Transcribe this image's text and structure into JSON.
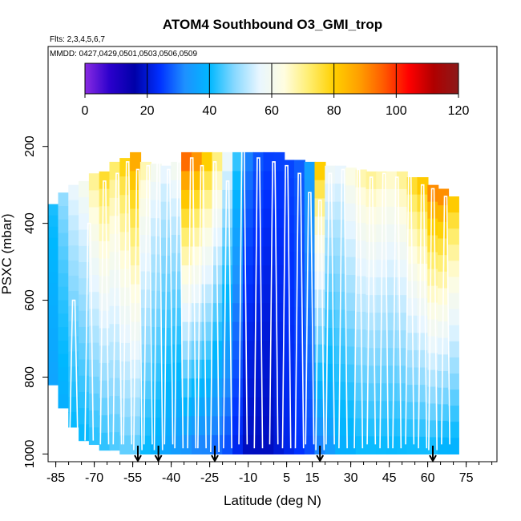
{
  "chart_data": {
    "type": "heatmap",
    "title": "ATOM4 Southbound O3_GMI_trop",
    "flights_label": "Flts: 2,3,4,5,6,7",
    "dates_label": "MMDD: 0427,0429,0501,0503,0506,0509",
    "xlabel": "Latitude (deg N)",
    "ylabel": "PSXC (mbar)",
    "xlim": [
      -88,
      87
    ],
    "ylim": [
      1020,
      -60
    ],
    "x_ticks": [
      -85,
      -70,
      -55,
      -40,
      -25,
      -10,
      5,
      15,
      30,
      45,
      60,
      75
    ],
    "y_ticks": [
      200,
      400,
      600,
      800,
      1000
    ],
    "colorbar": {
      "ticks": [
        0,
        20,
        40,
        60,
        80,
        100,
        120
      ],
      "range": [
        0,
        120
      ],
      "colors": [
        "#8a2be2",
        "#2b00cc",
        "#0000a8",
        "#0030ff",
        "#1e90ff",
        "#00b8ff",
        "#87d8ff",
        "#e8f6ff",
        "#fffde0",
        "#ffee70",
        "#ffd000",
        "#ffa000",
        "#ff5a00",
        "#ff0000",
        "#b00000",
        "#8b1a1a"
      ]
    },
    "profile_arrows_lat": [
      -53,
      -45,
      -23,
      18,
      62
    ],
    "profiles": [
      {
        "lat": -78,
        "p_top": 600,
        "p_bottom": 975
      },
      {
        "lat": -72,
        "p_top": 400,
        "p_bottom": 965
      },
      {
        "lat": -66,
        "p_top": 290,
        "p_bottom": 975
      },
      {
        "lat": -61,
        "p_top": 270,
        "p_bottom": 975
      },
      {
        "lat": -57,
        "p_top": 240,
        "p_bottom": 975
      },
      {
        "lat": -53,
        "p_top": 260,
        "p_bottom": 990
      },
      {
        "lat": -49,
        "p_top": 250,
        "p_bottom": 975
      },
      {
        "lat": -45,
        "p_top": 230,
        "p_bottom": 990
      },
      {
        "lat": -41,
        "p_top": 260,
        "p_bottom": 975
      },
      {
        "lat": -37,
        "p_top": 240,
        "p_bottom": 985
      },
      {
        "lat": -32,
        "p_top": 230,
        "p_bottom": 985
      },
      {
        "lat": -28,
        "p_top": 250,
        "p_bottom": 985
      },
      {
        "lat": -23,
        "p_top": 240,
        "p_bottom": 995
      },
      {
        "lat": -18,
        "p_top": 290,
        "p_bottom": 985
      },
      {
        "lat": -12,
        "p_top": 205,
        "p_bottom": 975
      },
      {
        "lat": -6,
        "p_top": 230,
        "p_bottom": 985
      },
      {
        "lat": 0,
        "p_top": 240,
        "p_bottom": 975
      },
      {
        "lat": 5,
        "p_top": 250,
        "p_bottom": 985
      },
      {
        "lat": 10,
        "p_top": 270,
        "p_bottom": 985
      },
      {
        "lat": 14,
        "p_top": 320,
        "p_bottom": 975
      },
      {
        "lat": 18,
        "p_top": 340,
        "p_bottom": 990
      },
      {
        "lat": 22,
        "p_top": 270,
        "p_bottom": 975
      },
      {
        "lat": 27,
        "p_top": 260,
        "p_bottom": 985
      },
      {
        "lat": 33,
        "p_top": 260,
        "p_bottom": 985
      },
      {
        "lat": 38,
        "p_top": 280,
        "p_bottom": 975
      },
      {
        "lat": 43,
        "p_top": 270,
        "p_bottom": 985
      },
      {
        "lat": 48,
        "p_top": 280,
        "p_bottom": 985
      },
      {
        "lat": 53,
        "p_top": 270,
        "p_bottom": 975
      },
      {
        "lat": 58,
        "p_top": 300,
        "p_bottom": 985
      },
      {
        "lat": 62,
        "p_top": 310,
        "p_bottom": 990
      },
      {
        "lat": 67,
        "p_top": 330,
        "p_bottom": 975
      }
    ],
    "columns": [
      {
        "lat": -86,
        "p_top": 350,
        "p_bottom": 820,
        "o3_top": 42,
        "o3_bottom": 36
      },
      {
        "lat": -82,
        "p_top": 320,
        "p_bottom": 880,
        "o3_top": 50,
        "o3_bottom": 38
      },
      {
        "lat": -78,
        "p_top": 300,
        "p_bottom": 930,
        "o3_top": 58,
        "o3_bottom": 40
      },
      {
        "lat": -74,
        "p_top": 290,
        "p_bottom": 965,
        "o3_top": 62,
        "o3_bottom": 40
      },
      {
        "lat": -70,
        "p_top": 270,
        "p_bottom": 975,
        "o3_top": 72,
        "o3_bottom": 42
      },
      {
        "lat": -66,
        "p_top": 265,
        "p_bottom": 990,
        "o3_top": 80,
        "o3_bottom": 42
      },
      {
        "lat": -62,
        "p_top": 240,
        "p_bottom": 990,
        "o3_top": 75,
        "o3_bottom": 44
      },
      {
        "lat": -58,
        "p_top": 230,
        "p_bottom": 1000,
        "o3_top": 82,
        "o3_bottom": 45
      },
      {
        "lat": -54,
        "p_top": 215,
        "p_bottom": 1000,
        "o3_top": 90,
        "o3_bottom": 45
      },
      {
        "lat": -50,
        "p_top": 240,
        "p_bottom": 1000,
        "o3_top": 70,
        "o3_bottom": 40
      },
      {
        "lat": -46,
        "p_top": 245,
        "p_bottom": 1000,
        "o3_top": 62,
        "o3_bottom": 38
      },
      {
        "lat": -42,
        "p_top": 250,
        "p_bottom": 1000,
        "o3_top": 58,
        "o3_bottom": 36
      },
      {
        "lat": -38,
        "p_top": 240,
        "p_bottom": 1000,
        "o3_top": 62,
        "o3_bottom": 34
      },
      {
        "lat": -34,
        "p_top": 215,
        "p_bottom": 1000,
        "o3_top": 100,
        "o3_bottom": 32
      },
      {
        "lat": -30,
        "p_top": 215,
        "p_bottom": 1000,
        "o3_top": 95,
        "o3_bottom": 30
      },
      {
        "lat": -26,
        "p_top": 215,
        "p_bottom": 1000,
        "o3_top": 85,
        "o3_bottom": 30
      },
      {
        "lat": -22,
        "p_top": 215,
        "p_bottom": 1000,
        "o3_top": 75,
        "o3_bottom": 28
      },
      {
        "lat": -18,
        "p_top": 215,
        "p_bottom": 1000,
        "o3_top": 60,
        "o3_bottom": 26
      },
      {
        "lat": -14,
        "p_top": 215,
        "p_bottom": 1000,
        "o3_top": 45,
        "o3_bottom": 22
      },
      {
        "lat": -10,
        "p_top": 215,
        "p_bottom": 1000,
        "o3_top": 32,
        "o3_bottom": 18
      },
      {
        "lat": -6,
        "p_top": 215,
        "p_bottom": 1000,
        "o3_top": 28,
        "o3_bottom": 18
      },
      {
        "lat": -2,
        "p_top": 215,
        "p_bottom": 1000,
        "o3_top": 26,
        "o3_bottom": 18
      },
      {
        "lat": 2,
        "p_top": 215,
        "p_bottom": 1000,
        "o3_top": 26,
        "o3_bottom": 20
      },
      {
        "lat": 6,
        "p_top": 235,
        "p_bottom": 1000,
        "o3_top": 26,
        "o3_bottom": 22
      },
      {
        "lat": 10,
        "p_top": 235,
        "p_bottom": 1000,
        "o3_top": 28,
        "o3_bottom": 24
      },
      {
        "lat": 14,
        "p_top": 240,
        "p_bottom": 1000,
        "o3_top": 36,
        "o3_bottom": 26
      },
      {
        "lat": 18,
        "p_top": 240,
        "p_bottom": 1000,
        "o3_top": 85,
        "o3_bottom": 30
      },
      {
        "lat": 22,
        "p_top": 250,
        "p_bottom": 1000,
        "o3_top": 60,
        "o3_bottom": 34
      },
      {
        "lat": 26,
        "p_top": 250,
        "p_bottom": 1000,
        "o3_top": 58,
        "o3_bottom": 38
      },
      {
        "lat": 30,
        "p_top": 255,
        "p_bottom": 1000,
        "o3_top": 65,
        "o3_bottom": 38
      },
      {
        "lat": 34,
        "p_top": 260,
        "p_bottom": 1000,
        "o3_top": 70,
        "o3_bottom": 40
      },
      {
        "lat": 38,
        "p_top": 265,
        "p_bottom": 1000,
        "o3_top": 72,
        "o3_bottom": 40
      },
      {
        "lat": 42,
        "p_top": 265,
        "p_bottom": 1000,
        "o3_top": 70,
        "o3_bottom": 40
      },
      {
        "lat": 46,
        "p_top": 265,
        "p_bottom": 1000,
        "o3_top": 68,
        "o3_bottom": 40
      },
      {
        "lat": 50,
        "p_top": 265,
        "p_bottom": 1000,
        "o3_top": 72,
        "o3_bottom": 40
      },
      {
        "lat": 54,
        "p_top": 280,
        "p_bottom": 1000,
        "o3_top": 80,
        "o3_bottom": 40
      },
      {
        "lat": 58,
        "p_top": 280,
        "p_bottom": 1000,
        "o3_top": 85,
        "o3_bottom": 40
      },
      {
        "lat": 62,
        "p_top": 300,
        "p_bottom": 1000,
        "o3_top": 95,
        "o3_bottom": 40
      },
      {
        "lat": 66,
        "p_top": 310,
        "p_bottom": 1000,
        "o3_top": 95,
        "o3_bottom": 38
      },
      {
        "lat": 70,
        "p_top": 330,
        "p_bottom": 1000,
        "o3_top": 85,
        "o3_bottom": 38
      }
    ]
  }
}
